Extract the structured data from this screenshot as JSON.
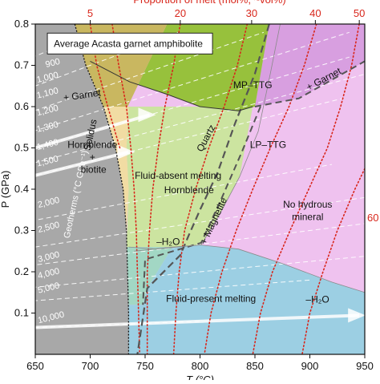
{
  "chart_data": {
    "type": "phase-diagram",
    "title": "Average Acasta garnet amphibolite",
    "xlabel": "T (°C)",
    "ylabel": "P (GPa)",
    "top_axis_label": "Proportion of melt (mol%, ~vol%)",
    "xlim": [
      650,
      950
    ],
    "ylim": [
      0.0,
      0.8
    ],
    "x_ticks": [
      650,
      700,
      750,
      800,
      850,
      900,
      950
    ],
    "y_ticks": [
      0.1,
      0.2,
      0.3,
      0.4,
      0.5,
      0.6,
      0.7,
      0.8
    ],
    "colors": {
      "grey_subsolidus": "#a8a8a8",
      "tan_hornblende_biotite": "#f1dca3",
      "olive_garnet": "#c9b760",
      "green_mp_ttg": "#97c13c",
      "lightgreen_fluid_absent": "#cce4a0",
      "teal": "#a2d7c4",
      "blue_fluid_present": "#9ccfe3",
      "pink_no_hydrous": "#efc2ef",
      "purple_garnet": "#d89fe0",
      "red_isopleth": "#d8261b"
    },
    "top_axis_ticks": [
      {
        "label": "5",
        "T": 700
      },
      {
        "label": "20",
        "T": 782
      },
      {
        "label": "30",
        "T": 847
      },
      {
        "label": "40",
        "T": 905
      },
      {
        "label": "50",
        "T": 945
      }
    ],
    "right_edge_label": {
      "label": "60",
      "P": 0.33
    },
    "geotherm_label": "Geotherms (°C GPa⁻¹)",
    "geotherms": [
      {
        "label": "900",
        "gradient": 900
      },
      {
        "label": "1,000",
        "gradient": 1000
      },
      {
        "label": "1,100",
        "gradient": 1100
      },
      {
        "label": "1,200",
        "gradient": 1200
      },
      {
        "label": "1,300",
        "gradient": 1300
      },
      {
        "label": "1,400",
        "gradient": 1400
      },
      {
        "label": "1,500",
        "gradient": 1500
      },
      {
        "label": "2,000",
        "gradient": 2000
      },
      {
        "label": "2,500",
        "gradient": 2500
      },
      {
        "label": "3,000",
        "gradient": 3000
      },
      {
        "label": "4,000",
        "gradient": 4000
      },
      {
        "label": "5,000",
        "gradient": 5000
      },
      {
        "label": "10,000",
        "gradient": 10000
      }
    ],
    "field_labels": [
      {
        "text": "MP–TTG",
        "T": 848,
        "P": 0.645
      },
      {
        "text": "+ Garnet",
        "T": 693,
        "P": 0.62
      },
      {
        "text": "+ Garnet",
        "T": 914,
        "P": 0.66
      },
      {
        "text": "Solidus",
        "T": 703,
        "P": 0.53
      },
      {
        "text": "Quartz",
        "T": 808,
        "P": 0.52
      },
      {
        "text": "Hornblende",
        "T": 702,
        "P": 0.5
      },
      {
        "text": "+",
        "T": 702,
        "P": 0.47
      },
      {
        "text": "biotite",
        "T": 703,
        "P": 0.44
      },
      {
        "text": "LP–TTG",
        "T": 862,
        "P": 0.5
      },
      {
        "text": "Fluid-absent melting",
        "T": 780,
        "P": 0.425
      },
      {
        "text": "Hornblende",
        "T": 790,
        "P": 0.39
      },
      {
        "text": "+ Magnetite",
        "T": 815,
        "P": 0.32
      },
      {
        "text": "No hydrous",
        "T": 898,
        "P": 0.355
      },
      {
        "text": "mineral",
        "T": 898,
        "P": 0.325
      },
      {
        "text": "–H₂O",
        "T": 771,
        "P": 0.265
      },
      {
        "text": "Fluid-present melting",
        "T": 810,
        "P": 0.127
      },
      {
        "text": "–H₂O",
        "T": 907,
        "P": 0.125
      }
    ],
    "solidus": [
      [
        686,
        0.8
      ],
      [
        696,
        0.7
      ],
      [
        712,
        0.6
      ],
      [
        723,
        0.5
      ],
      [
        730,
        0.4
      ],
      [
        733,
        0.3
      ],
      [
        734,
        0.2
      ],
      [
        735,
        0.1
      ],
      [
        735,
        0.0
      ]
    ],
    "quartz_out": [
      [
        863,
        0.8
      ],
      [
        850,
        0.68
      ],
      [
        832,
        0.56
      ],
      [
        816,
        0.44
      ],
      [
        800,
        0.35
      ],
      [
        790,
        0.29
      ],
      [
        782,
        0.24
      ],
      [
        752,
        0.16
      ],
      [
        743,
        0.0
      ]
    ],
    "garnet_in_high": [
      [
        850,
        0.6
      ],
      [
        890,
        0.62
      ],
      [
        950,
        0.71
      ]
    ],
    "garnet_in_low": [
      [
        700,
        0.71
      ],
      [
        736,
        0.66
      ],
      [
        770,
        0.63
      ],
      [
        800,
        0.6
      ],
      [
        835,
        0.59
      ],
      [
        848,
        0.6
      ]
    ],
    "magnetite_line": [
      [
        855,
        0.6
      ],
      [
        838,
        0.49
      ],
      [
        820,
        0.38
      ],
      [
        801,
        0.27
      ],
      [
        750,
        0.23
      ],
      [
        748,
        0.12
      ]
    ],
    "no_hydrous_boundary": [
      [
        873,
        0.8
      ],
      [
        864,
        0.68
      ],
      [
        853,
        0.54
      ],
      [
        836,
        0.43
      ],
      [
        818,
        0.34
      ],
      [
        801,
        0.265
      ],
      [
        775,
        0.26
      ],
      [
        740,
        0.25
      ]
    ],
    "fluid_present_boundary": [
      [
        735,
        0.26
      ],
      [
        760,
        0.255
      ],
      [
        800,
        0.265
      ],
      [
        835,
        0.255
      ],
      [
        875,
        0.22
      ],
      [
        920,
        0.175
      ],
      [
        950,
        0.15
      ]
    ],
    "isopleths": [
      [
        [
          700,
          0.8
        ],
        [
          706,
          0.7
        ],
        [
          716,
          0.6
        ],
        [
          727,
          0.5
        ]
      ],
      [
        [
          720,
          0.8
        ],
        [
          726,
          0.7
        ],
        [
          733,
          0.6
        ],
        [
          737,
          0.5
        ],
        [
          740,
          0.4
        ],
        [
          742,
          0.3
        ],
        [
          743,
          0.2
        ],
        [
          744,
          0.1
        ],
        [
          745,
          0.0
        ]
      ],
      [
        [
          782,
          0.8
        ],
        [
          776,
          0.7
        ],
        [
          768,
          0.6
        ],
        [
          762,
          0.5
        ],
        [
          757,
          0.4
        ],
        [
          754,
          0.3
        ],
        [
          752,
          0.2
        ],
        [
          752,
          0.1
        ],
        [
          752,
          0.0
        ]
      ],
      [
        [
          843,
          0.8
        ],
        [
          834,
          0.7
        ],
        [
          822,
          0.6
        ],
        [
          808,
          0.5
        ],
        [
          796,
          0.4
        ],
        [
          786,
          0.3
        ],
        [
          781,
          0.2
        ],
        [
          778,
          0.1
        ],
        [
          776,
          0.0
        ]
      ],
      [
        [
          906,
          0.8
        ],
        [
          895,
          0.7
        ],
        [
          881,
          0.6
        ],
        [
          864,
          0.5
        ],
        [
          848,
          0.4
        ],
        [
          833,
          0.3
        ],
        [
          820,
          0.2
        ],
        [
          810,
          0.1
        ],
        [
          804,
          0.0
        ]
      ],
      [
        [
          945,
          0.8
        ],
        [
          938,
          0.7
        ],
        [
          928,
          0.6
        ],
        [
          916,
          0.5
        ],
        [
          899,
          0.4
        ],
        [
          882,
          0.3
        ],
        [
          866,
          0.2
        ],
        [
          855,
          0.1
        ],
        [
          848,
          0.0
        ]
      ],
      [
        [
          950,
          0.45
        ],
        [
          941,
          0.4
        ],
        [
          925,
          0.3
        ],
        [
          912,
          0.2
        ],
        [
          900,
          0.1
        ],
        [
          893,
          0.0
        ]
      ]
    ]
  }
}
